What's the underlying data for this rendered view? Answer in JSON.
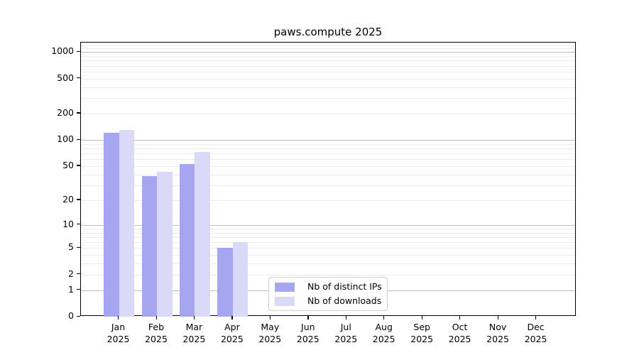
{
  "chart_data": {
    "type": "bar",
    "title": "paws.compute 2025",
    "categories": [
      "Jan",
      "Feb",
      "Mar",
      "Apr",
      "May",
      "Jun",
      "Jul",
      "Aug",
      "Sep",
      "Oct",
      "Nov",
      "Dec"
    ],
    "year": "2025",
    "series": [
      {
        "name": "Nb of distinct IPs",
        "color": "#a5a5f0",
        "values": [
          120,
          38,
          53,
          5,
          0,
          0,
          0,
          0,
          0,
          0,
          0,
          0
        ]
      },
      {
        "name": "Nb of downloads",
        "color": "#dadaf8",
        "values": [
          131,
          43,
          73,
          6,
          0,
          0,
          0,
          0,
          0,
          0,
          0,
          0
        ]
      }
    ],
    "yscale": "log1p",
    "ylim": [
      0,
      1281
    ],
    "yticks": [
      0,
      1,
      2,
      5,
      10,
      20,
      50,
      100,
      200,
      500,
      1000
    ],
    "grid": {
      "major_values": [
        1,
        10,
        100,
        1000
      ],
      "major_color": "#c0c0c0",
      "minor_color": "#ebebeb"
    },
    "legend": {
      "position": "bottom-center-inside",
      "entries": [
        "Nb of distinct IPs",
        "Nb of downloads"
      ]
    }
  }
}
